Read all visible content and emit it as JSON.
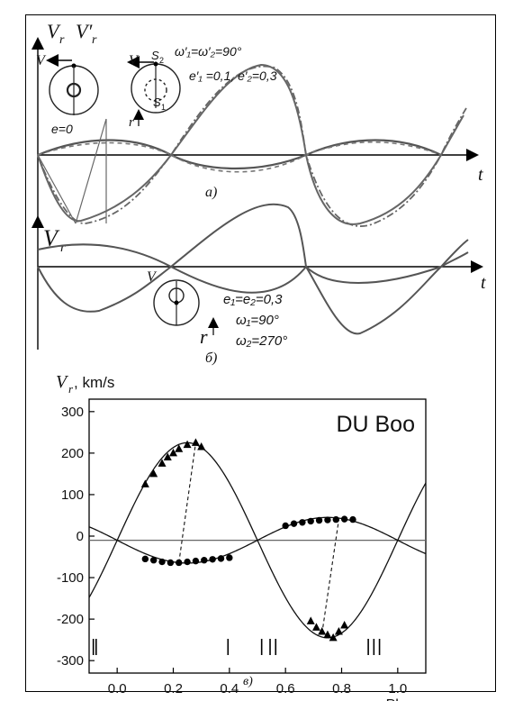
{
  "panel_a": {
    "y_axis_label": "V",
    "y_axis_sub": "r",
    "y_axis_label2": "V′",
    "y_axis_sub2": "r",
    "t_label": "t",
    "caption": "а)",
    "text_v1": "V",
    "text_v2": "V",
    "text_s2": "S",
    "text_s2_sub": "2",
    "text_s1": "S",
    "text_s1_sub": "1",
    "text_omega": "ω′₁=ω′₂=90°",
    "text_e": "e′₁ =0,1, e′₂=0,3",
    "text_e0": "e=0",
    "text_r": "r"
  },
  "panel_b": {
    "y_axis_label": "V",
    "y_axis_sub": "r",
    "t_label": "t",
    "caption": "б)",
    "text_v": "V",
    "text_e": "e₁=e₂=0,3",
    "text_w1": "ω₁=90°",
    "text_w2": "ω₂=270°",
    "text_r": "r"
  },
  "panel_c": {
    "caption": "в)"
  },
  "chart_data": [
    {
      "type": "line",
      "title": "",
      "xlabel": "t",
      "ylabel": "V_r, V′_r",
      "series": [
        {
          "shape": "circular orbit, e=0",
          "style": "solid",
          "x": [
            0,
            0.125,
            0.25,
            0.375,
            0.5,
            0.625,
            0.75,
            0.875,
            1.0
          ],
          "y": [
            0,
            0.36,
            0.5,
            0.36,
            0,
            -0.36,
            -0.5,
            -0.36,
            0
          ]
        },
        {
          "shape": "eccentric orbit, e′=0.1",
          "style": "dashed",
          "x": [
            0,
            0.125,
            0.25,
            0.375,
            0.5,
            0.625,
            0.75,
            0.875,
            1.0
          ],
          "y": [
            0,
            0.33,
            0.46,
            0.35,
            0,
            -0.4,
            -0.55,
            -0.4,
            0
          ]
        },
        {
          "shape": "eccentric orbit, e′=0.3",
          "style": "dash-dot",
          "x": [
            0,
            0.125,
            0.25,
            0.375,
            0.5,
            0.625,
            0.75,
            0.875,
            1.0
          ],
          "y": [
            0,
            -1.0,
            -0.85,
            -0.35,
            0.5,
            1.0,
            0.6,
            -0.2,
            0
          ]
        }
      ]
    },
    {
      "type": "line",
      "title": "",
      "xlabel": "t",
      "ylabel": "V_r",
      "series": [
        {
          "shape": "star 1, e=0.3, ω=90°",
          "x": [
            0,
            0.2,
            0.4,
            0.55,
            0.7,
            0.85,
            1.0
          ],
          "y": [
            0.5,
            0.3,
            -0.2,
            -0.6,
            -1.3,
            -0.4,
            0.5
          ]
        },
        {
          "shape": "star 2, e=0.3, ω=270°",
          "x": [
            0,
            0.2,
            0.4,
            0.55,
            0.7,
            0.85,
            1.0
          ],
          "y": [
            -0.5,
            -0.3,
            0.2,
            0.6,
            1.3,
            0.4,
            -0.5
          ]
        }
      ]
    },
    {
      "type": "scatter",
      "title": "DU Boo",
      "xlabel": "Phase",
      "ylabel": "V_r , km/s",
      "xlim": [
        -0.1,
        1.1
      ],
      "ylim": [
        -330,
        330
      ],
      "x_ticks": [
        "0.0",
        "0.2",
        "0.4",
        "0.6",
        "0.8",
        "1.0"
      ],
      "y_ticks": [
        "300",
        "200",
        "100",
        "0",
        "-100",
        "-200",
        "-300"
      ],
      "grid": false,
      "gamma_velocity": -10,
      "series": [
        {
          "marker": "triangle",
          "x": [
            0.1,
            0.13,
            0.16,
            0.18,
            0.2,
            0.22,
            0.25,
            0.28,
            0.3,
            0.69,
            0.71,
            0.73,
            0.75,
            0.77,
            0.79,
            0.81
          ],
          "y": [
            125,
            150,
            175,
            190,
            200,
            210,
            220,
            225,
            215,
            -205,
            -220,
            -230,
            -238,
            -245,
            -230,
            -215
          ]
        },
        {
          "marker": "circle",
          "x": [
            0.1,
            0.13,
            0.16,
            0.19,
            0.22,
            0.25,
            0.28,
            0.31,
            0.34,
            0.37,
            0.4,
            0.6,
            0.63,
            0.66,
            0.69,
            0.72,
            0.75,
            0.78,
            0.81,
            0.84
          ],
          "y": [
            -55,
            -58,
            -62,
            -64,
            -64,
            -62,
            -60,
            -58,
            -56,
            -54,
            -52,
            25,
            30,
            33,
            36,
            38,
            39,
            40,
            41,
            40
          ]
        }
      ],
      "model_curves": [
        {
          "shape": "primary model",
          "k": 235,
          "phase_of_max": 0.25
        },
        {
          "shape": "secondary model",
          "k": 55,
          "phase_of_max": 0.75
        }
      ],
      "phase_tick_marks": [
        -0.085,
        -0.075,
        0.395,
        0.515,
        0.545,
        0.565,
        0.895,
        0.915,
        0.935
      ]
    }
  ]
}
